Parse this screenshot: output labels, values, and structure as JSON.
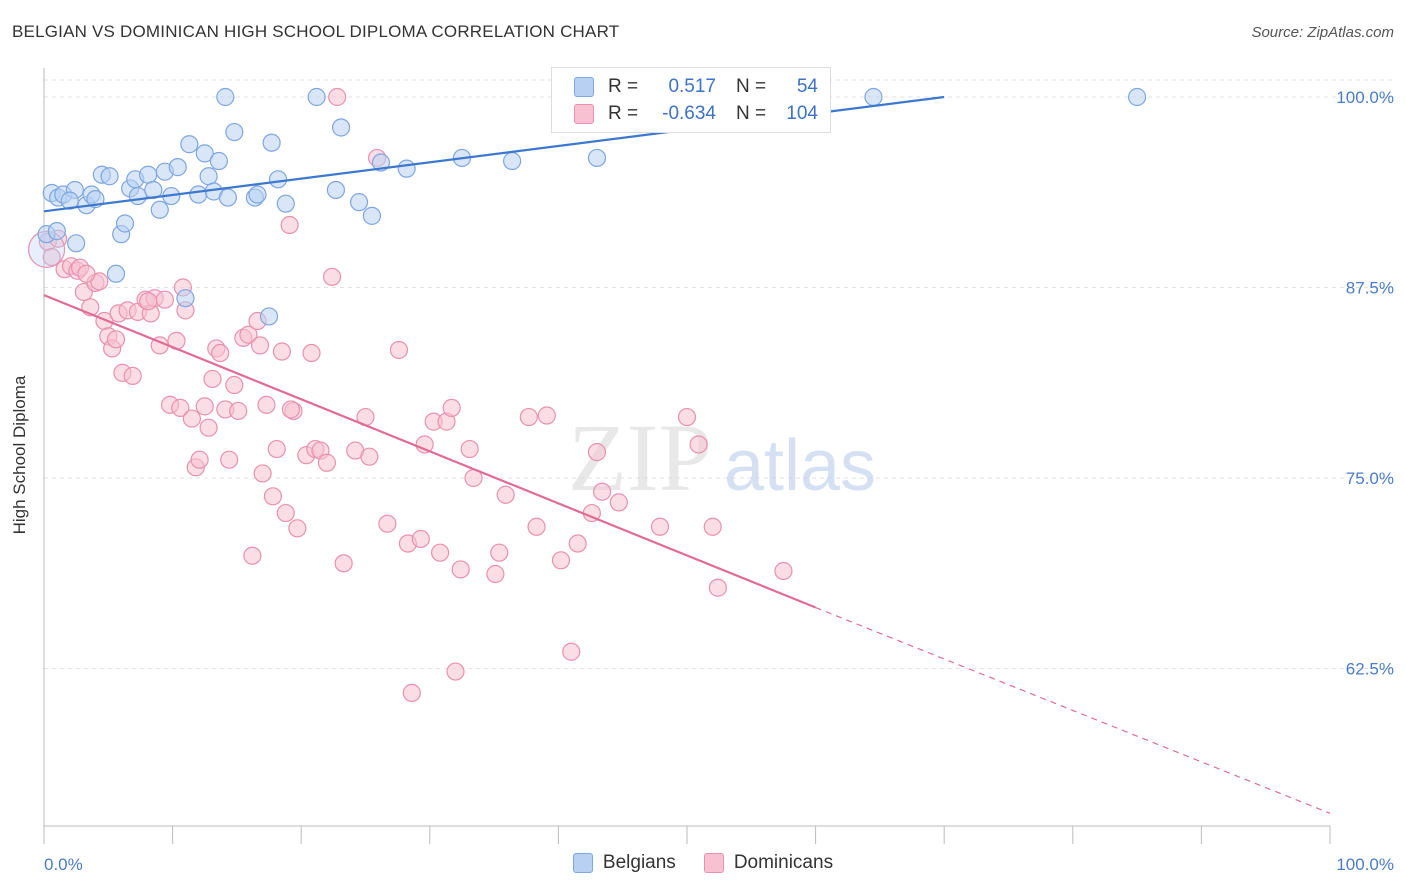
{
  "header": {
    "title": "BELGIAN VS DOMINICAN HIGH SCHOOL DIPLOMA CORRELATION CHART",
    "source": "Source: ZipAtlas.com"
  },
  "legend": {
    "r_label": "R =",
    "n_label": "N =",
    "series": [
      {
        "name": "Belgians",
        "r": "0.517",
        "n": "54",
        "fill": "#b8d1f3",
        "stroke": "#7ea6e0"
      },
      {
        "name": "Dominicans",
        "r": "-0.634",
        "n": "104",
        "fill": "#f7c1d2",
        "stroke": "#e891ae"
      }
    ]
  },
  "watermark": {
    "zip": "ZIP",
    "atlas": "atlas"
  },
  "colors": {
    "blue": "#3c78d0",
    "pink": "#e06c94",
    "blue_fill": "#b8d1f3",
    "pink_fill": "#f7c1d2",
    "axis_text": "#4a7cc7"
  },
  "chart_data": {
    "type": "scatter",
    "title": "BELGIAN VS DOMINICAN HIGH SCHOOL DIPLOMA CORRELATION CHART",
    "xlabel": "",
    "ylabel": "High School Diploma",
    "xlim": [
      0,
      100
    ],
    "ylim": [
      50.5,
      101.5
    ],
    "x_tick_labels": [
      "0.0%",
      "100.0%"
    ],
    "y_ticks": [
      62.5,
      75.0,
      87.5,
      100.0
    ],
    "y_tick_labels": [
      "62.5%",
      "75.0%",
      "87.5%",
      "100.0%"
    ],
    "grid": true,
    "legend_position": "top-center",
    "series": [
      {
        "name": "Belgians",
        "trend": {
          "x": [
            0,
            70
          ],
          "y": [
            92.5,
            100.0
          ],
          "dashed_to": null
        },
        "points": [
          [
            0.2,
            91.0
          ],
          [
            0.6,
            93.7
          ],
          [
            1.1,
            93.4
          ],
          [
            1.5,
            93.6
          ],
          [
            2.4,
            93.9
          ],
          [
            2.5,
            90.4
          ],
          [
            3.3,
            92.9
          ],
          [
            3.7,
            93.6
          ],
          [
            4.0,
            93.3
          ],
          [
            4.5,
            94.9
          ],
          [
            5.1,
            94.8
          ],
          [
            5.6,
            88.4
          ],
          [
            6.0,
            91.0
          ],
          [
            6.3,
            91.7
          ],
          [
            6.7,
            94.0
          ],
          [
            7.1,
            94.6
          ],
          [
            7.3,
            93.5
          ],
          [
            8.1,
            94.9
          ],
          [
            8.5,
            93.9
          ],
          [
            9.0,
            92.6
          ],
          [
            9.4,
            95.1
          ],
          [
            9.9,
            93.5
          ],
          [
            10.4,
            95.4
          ],
          [
            11.0,
            86.8
          ],
          [
            11.3,
            96.9
          ],
          [
            12.0,
            93.6
          ],
          [
            12.5,
            96.3
          ],
          [
            12.8,
            94.8
          ],
          [
            13.2,
            93.8
          ],
          [
            13.6,
            95.8
          ],
          [
            14.1,
            100.0
          ],
          [
            14.3,
            93.4
          ],
          [
            14.8,
            97.7
          ],
          [
            16.4,
            93.4
          ],
          [
            16.6,
            93.6
          ],
          [
            17.7,
            97.0
          ],
          [
            18.2,
            94.6
          ],
          [
            18.8,
            93.0
          ],
          [
            17.5,
            85.6
          ],
          [
            21.2,
            100.0
          ],
          [
            22.7,
            93.9
          ],
          [
            23.1,
            98.0
          ],
          [
            24.5,
            93.1
          ],
          [
            25.5,
            92.2
          ],
          [
            26.2,
            95.7
          ],
          [
            28.2,
            95.3
          ],
          [
            32.5,
            96.0
          ],
          [
            36.4,
            95.8
          ],
          [
            43.0,
            96.0
          ],
          [
            54.0,
            100.0
          ],
          [
            64.5,
            100.0
          ],
          [
            85.0,
            100.0
          ],
          [
            1.0,
            91.2
          ],
          [
            2.0,
            93.2
          ]
        ]
      },
      {
        "name": "Dominicans",
        "trend": {
          "x": [
            0,
            60
          ],
          "y": [
            87.0,
            66.5
          ],
          "dashed_to": [
            100,
            53.0
          ]
        },
        "points": [
          [
            0.3,
            90.5
          ],
          [
            0.6,
            89.5
          ],
          [
            1.1,
            90.7
          ],
          [
            1.6,
            88.7
          ],
          [
            2.1,
            88.9
          ],
          [
            2.6,
            88.6
          ],
          [
            3.1,
            87.2
          ],
          [
            3.6,
            86.2
          ],
          [
            4.0,
            87.8
          ],
          [
            4.3,
            87.9
          ],
          [
            4.7,
            85.3
          ],
          [
            5.0,
            84.3
          ],
          [
            5.3,
            83.5
          ],
          [
            5.8,
            85.8
          ],
          [
            6.1,
            81.9
          ],
          [
            6.5,
            86.0
          ],
          [
            6.9,
            81.7
          ],
          [
            7.3,
            85.9
          ],
          [
            7.9,
            86.7
          ],
          [
            8.3,
            85.8
          ],
          [
            8.6,
            86.8
          ],
          [
            9.0,
            83.7
          ],
          [
            9.4,
            86.7
          ],
          [
            9.8,
            79.8
          ],
          [
            10.3,
            84.0
          ],
          [
            10.6,
            79.6
          ],
          [
            10.8,
            87.5
          ],
          [
            11.0,
            86.0
          ],
          [
            11.5,
            78.9
          ],
          [
            11.8,
            75.7
          ],
          [
            12.1,
            76.2
          ],
          [
            12.5,
            79.7
          ],
          [
            12.8,
            78.3
          ],
          [
            13.1,
            81.5
          ],
          [
            13.4,
            83.5
          ],
          [
            13.7,
            83.2
          ],
          [
            14.1,
            79.5
          ],
          [
            14.4,
            76.2
          ],
          [
            14.8,
            81.1
          ],
          [
            15.1,
            79.4
          ],
          [
            15.5,
            84.2
          ],
          [
            15.9,
            84.4
          ],
          [
            16.2,
            69.9
          ],
          [
            16.6,
            85.3
          ],
          [
            17.0,
            75.3
          ],
          [
            17.3,
            79.8
          ],
          [
            17.8,
            73.8
          ],
          [
            18.1,
            76.9
          ],
          [
            18.5,
            83.3
          ],
          [
            18.8,
            72.7
          ],
          [
            19.1,
            91.6
          ],
          [
            19.4,
            79.4
          ],
          [
            19.7,
            71.7
          ],
          [
            20.4,
            76.5
          ],
          [
            20.8,
            83.2
          ],
          [
            21.1,
            76.9
          ],
          [
            21.5,
            76.8
          ],
          [
            22.0,
            76.0
          ],
          [
            22.4,
            88.2
          ],
          [
            22.8,
            100.0
          ],
          [
            23.3,
            69.4
          ],
          [
            24.2,
            76.8
          ],
          [
            25.0,
            79.0
          ],
          [
            25.3,
            76.4
          ],
          [
            25.9,
            96.0
          ],
          [
            26.7,
            72.0
          ],
          [
            27.6,
            83.4
          ],
          [
            28.3,
            70.7
          ],
          [
            28.6,
            60.9
          ],
          [
            29.3,
            71.0
          ],
          [
            29.6,
            77.2
          ],
          [
            30.3,
            78.7
          ],
          [
            30.8,
            70.1
          ],
          [
            31.3,
            78.7
          ],
          [
            31.7,
            79.6
          ],
          [
            32.0,
            62.3
          ],
          [
            32.4,
            69.0
          ],
          [
            33.1,
            76.9
          ],
          [
            33.4,
            75.0
          ],
          [
            35.1,
            68.7
          ],
          [
            35.4,
            70.1
          ],
          [
            35.9,
            73.9
          ],
          [
            37.7,
            79.0
          ],
          [
            38.3,
            71.8
          ],
          [
            39.1,
            79.1
          ],
          [
            40.2,
            69.6
          ],
          [
            41.0,
            63.6
          ],
          [
            41.5,
            70.7
          ],
          [
            42.6,
            72.7
          ],
          [
            43.0,
            76.7
          ],
          [
            43.4,
            74.1
          ],
          [
            44.7,
            73.4
          ],
          [
            47.9,
            71.8
          ],
          [
            50.0,
            79.0
          ],
          [
            50.9,
            77.2
          ],
          [
            52.0,
            71.8
          ],
          [
            52.4,
            67.8
          ],
          [
            57.5,
            68.9
          ],
          [
            2.8,
            88.8
          ],
          [
            3.3,
            88.4
          ],
          [
            5.6,
            84.1
          ],
          [
            8.1,
            86.6
          ],
          [
            16.8,
            83.7
          ],
          [
            19.2,
            79.5
          ]
        ]
      }
    ]
  },
  "axis": {
    "y_ticks": [
      {
        "label": "100.0%",
        "value": 100.0
      },
      {
        "label": "87.5%",
        "value": 87.5
      },
      {
        "label": "75.0%",
        "value": 75.0
      },
      {
        "label": "62.5%",
        "value": 62.5
      }
    ],
    "x_left_label": "0.0%",
    "x_right_label": "100.0%"
  }
}
